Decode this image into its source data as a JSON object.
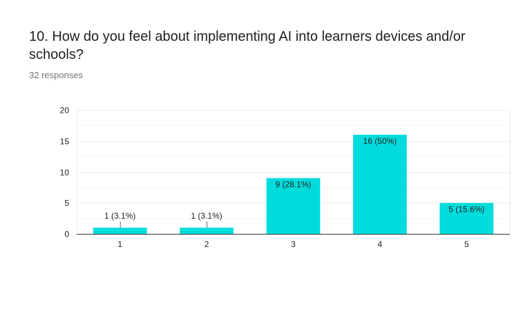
{
  "question": {
    "title": "10. How do you feel about implementing AI into learners devices and/or schools?",
    "responses": "32 responses"
  },
  "colors": {
    "bar": "#00dcdc",
    "grid": "#ebebeb",
    "axis": "#333333"
  },
  "chart_data": {
    "type": "bar",
    "title": "",
    "xlabel": "",
    "ylabel": "",
    "categories": [
      "1",
      "2",
      "3",
      "4",
      "5"
    ],
    "values": [
      1,
      1,
      9,
      16,
      5
    ],
    "data_labels": [
      "1 (3.1%)",
      "1 (3.1%)",
      "9 (28.1%)",
      "16 (50%)",
      "5 (15.6%)"
    ],
    "ylim": [
      0,
      20
    ],
    "yticks": [
      0,
      5,
      10,
      15,
      20
    ],
    "grid": true,
    "legend": "none"
  }
}
